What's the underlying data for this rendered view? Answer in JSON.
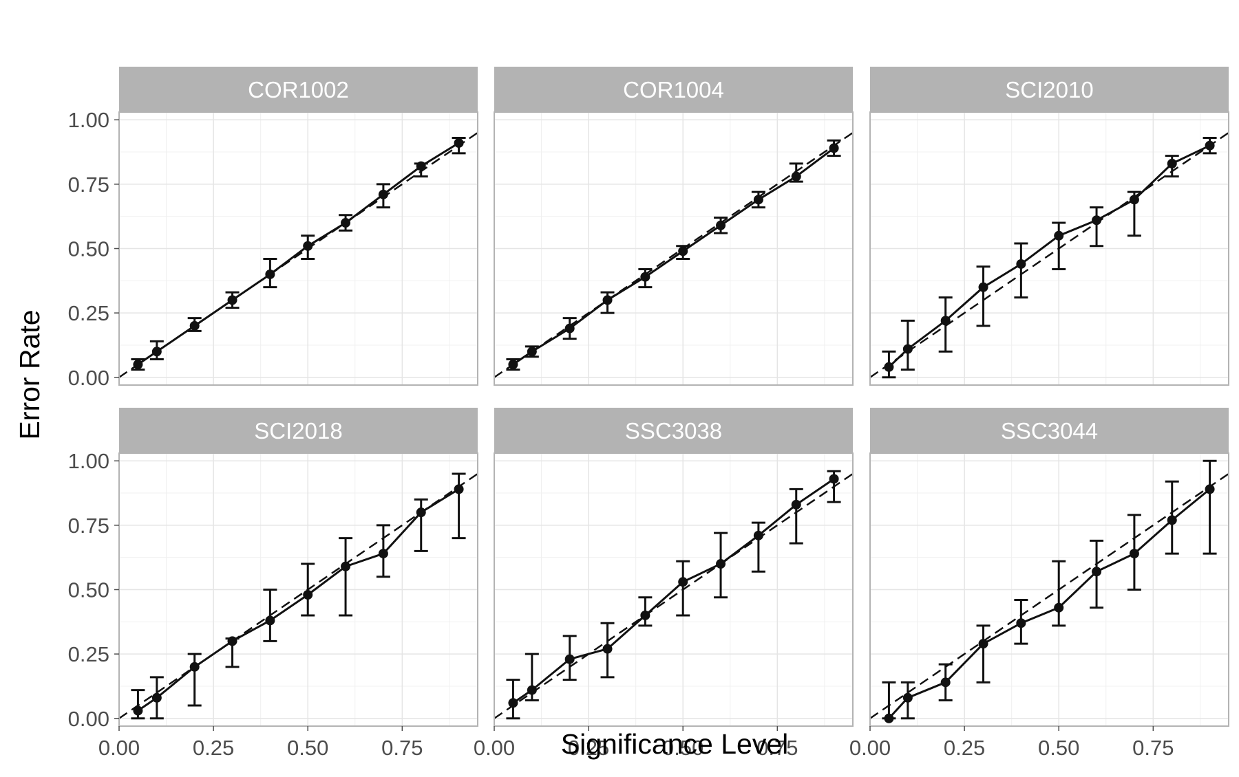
{
  "chart_data": {
    "type": "line",
    "facet_layout": "2 rows x 3 columns",
    "xlabel": "Significance Level",
    "ylabel": "Error Rate",
    "xlim": [
      0,
      0.95
    ],
    "ylim": [
      -0.03,
      1.03
    ],
    "x_ticks": [
      0.0,
      0.25,
      0.5,
      0.75
    ],
    "x_tick_labels": [
      "0.00",
      "0.25",
      "0.50",
      "0.75"
    ],
    "y_ticks": [
      0.0,
      0.25,
      0.5,
      0.75,
      1.0
    ],
    "y_tick_labels": [
      "0.00",
      "0.25",
      "0.50",
      "0.75",
      "1.00"
    ],
    "grid": true,
    "reference_line": {
      "style": "dashed",
      "slope": 1,
      "intercept": 0
    },
    "colors": {
      "series": "#111111",
      "strip": "#b3b3b3",
      "strip_text": "#ffffff",
      "grid": "#e5e5e5",
      "border": "#b3b3b3",
      "axis_text": "#4d4d4d"
    },
    "x": [
      0.05,
      0.1,
      0.2,
      0.3,
      0.4,
      0.5,
      0.6,
      0.7,
      0.8,
      0.9
    ],
    "panels": [
      {
        "title": "COR1002",
        "values": [
          0.05,
          0.1,
          0.2,
          0.3,
          0.4,
          0.51,
          0.6,
          0.71,
          0.82,
          0.91
        ],
        "lower": [
          0.03,
          0.07,
          0.18,
          0.27,
          0.35,
          0.46,
          0.57,
          0.66,
          0.78,
          0.87
        ],
        "upper": [
          0.07,
          0.14,
          0.23,
          0.33,
          0.46,
          0.55,
          0.63,
          0.75,
          0.83,
          0.93
        ]
      },
      {
        "title": "COR1004",
        "values": [
          0.05,
          0.1,
          0.19,
          0.3,
          0.39,
          0.49,
          0.59,
          0.69,
          0.78,
          0.89
        ],
        "lower": [
          0.03,
          0.08,
          0.15,
          0.25,
          0.35,
          0.46,
          0.56,
          0.66,
          0.76,
          0.86
        ],
        "upper": [
          0.07,
          0.12,
          0.23,
          0.33,
          0.42,
          0.51,
          0.62,
          0.72,
          0.83,
          0.92
        ]
      },
      {
        "title": "SCI2010",
        "values": [
          0.04,
          0.11,
          0.22,
          0.35,
          0.44,
          0.55,
          0.61,
          0.69,
          0.83,
          0.9
        ],
        "lower": [
          0.0,
          0.03,
          0.1,
          0.2,
          0.31,
          0.42,
          0.51,
          0.55,
          0.78,
          0.87
        ],
        "upper": [
          0.1,
          0.22,
          0.31,
          0.43,
          0.52,
          0.6,
          0.66,
          0.72,
          0.86,
          0.93
        ]
      },
      {
        "title": "SCI2018",
        "values": [
          0.03,
          0.08,
          0.2,
          0.3,
          0.38,
          0.48,
          0.59,
          0.64,
          0.8,
          0.89
        ],
        "lower": [
          0.0,
          0.0,
          0.05,
          0.2,
          0.3,
          0.4,
          0.4,
          0.55,
          0.65,
          0.7
        ],
        "upper": [
          0.11,
          0.16,
          0.25,
          0.31,
          0.5,
          0.6,
          0.7,
          0.75,
          0.85,
          0.95
        ]
      },
      {
        "title": "SSC3038",
        "values": [
          0.06,
          0.11,
          0.23,
          0.27,
          0.4,
          0.53,
          0.6,
          0.71,
          0.83,
          0.93
        ],
        "lower": [
          0.0,
          0.07,
          0.15,
          0.16,
          0.36,
          0.4,
          0.47,
          0.57,
          0.68,
          0.84
        ],
        "upper": [
          0.15,
          0.25,
          0.32,
          0.37,
          0.47,
          0.61,
          0.72,
          0.76,
          0.89,
          0.96
        ]
      },
      {
        "title": "SSC3044",
        "values": [
          0.0,
          0.08,
          0.14,
          0.29,
          0.37,
          0.43,
          0.57,
          0.64,
          0.77,
          0.89
        ],
        "lower": [
          0.0,
          0.0,
          0.07,
          0.14,
          0.29,
          0.36,
          0.43,
          0.5,
          0.64,
          0.64
        ],
        "upper": [
          0.14,
          0.14,
          0.21,
          0.36,
          0.46,
          0.61,
          0.69,
          0.79,
          0.92,
          1.0
        ]
      }
    ]
  }
}
